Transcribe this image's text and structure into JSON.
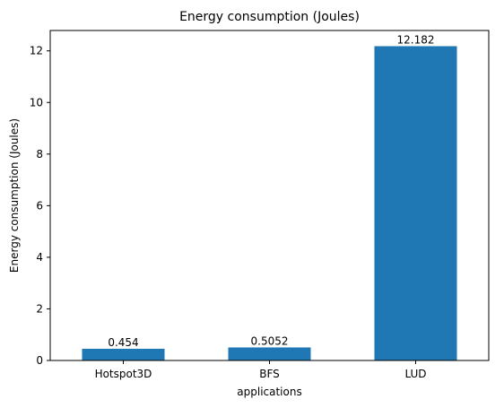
{
  "chart_data": {
    "type": "bar",
    "title": "Energy consumption (Joules)",
    "xlabel": "applications",
    "ylabel": "Energy consumption (Joules)",
    "categories": [
      "Hotspot3D",
      "BFS",
      "LUD"
    ],
    "values": [
      0.454,
      0.5052,
      12.182
    ],
    "value_labels": [
      "0.454",
      "0.5052",
      "12.182"
    ],
    "ylim": [
      0,
      12.79
    ],
    "yticks": [
      0,
      2,
      4,
      6,
      8,
      10,
      12
    ],
    "bar_color": "#1f77b4",
    "grid": false
  }
}
